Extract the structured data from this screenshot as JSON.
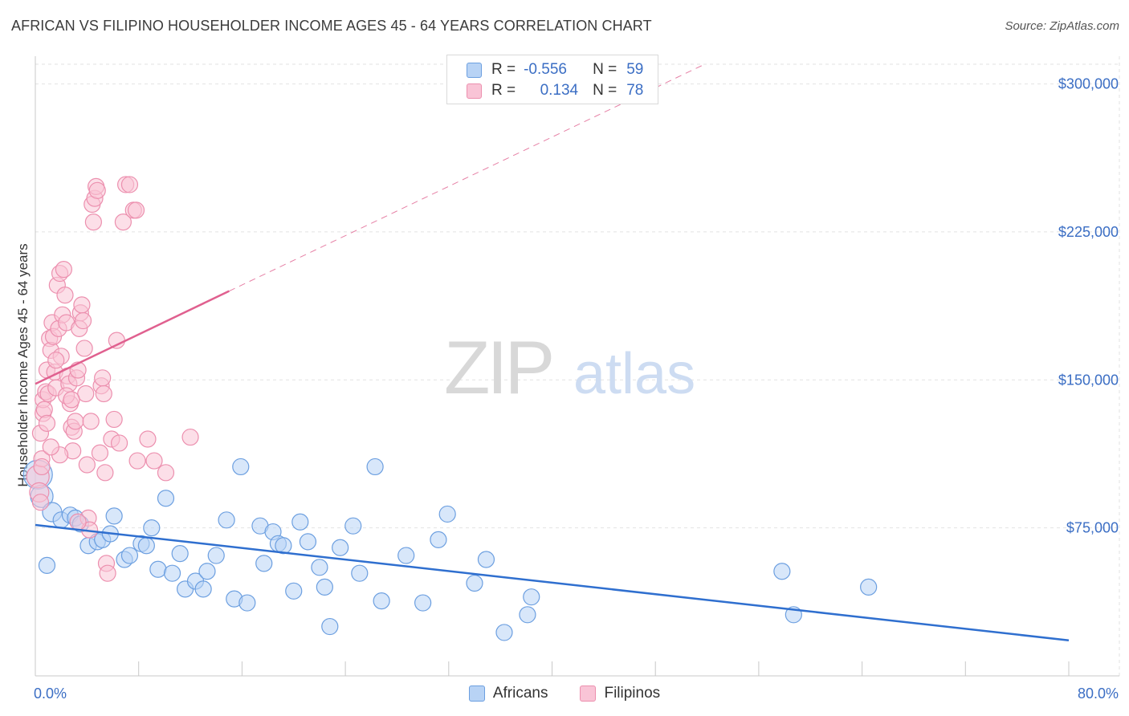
{
  "title": "AFRICAN VS FILIPINO HOUSEHOLDER INCOME AGES 45 - 64 YEARS CORRELATION CHART",
  "source": "Source: ZipAtlas.com",
  "watermark": {
    "zip": "ZIP",
    "atlas": "atlas"
  },
  "colors": {
    "africans_fill": "#b8d3f5",
    "africans_stroke": "#6c9fe0",
    "africans_line": "#2f6fcf",
    "filipinos_fill": "#f9c4d6",
    "filipinos_stroke": "#ec8fae",
    "filipinos_line": "#e0608f",
    "accent_text": "#3b6ec4",
    "grid": "#e2e2e2"
  },
  "legend_top": [
    {
      "r_label": "R =",
      "r_value": "-0.556",
      "n_label": "N =",
      "n_value": "59"
    },
    {
      "r_label": "R =",
      "r_value": "0.134",
      "n_label": "N =",
      "n_value": "78"
    }
  ],
  "chart_data": {
    "type": "scatter",
    "title": "AFRICAN VS FILIPINO HOUSEHOLDER INCOME AGES 45 - 64 YEARS CORRELATION CHART",
    "xlabel": "",
    "ylabel": "Householder Income Ages 45 - 64 years",
    "xlim": [
      0,
      80
    ],
    "ylim": [
      0,
      310000
    ],
    "x_tick_labels": [
      "0.0%",
      "80.0%"
    ],
    "y_ticks": [
      75000,
      150000,
      225000,
      300000
    ],
    "y_tick_labels": [
      "$75,000",
      "$150,000",
      "$225,000",
      "$300,000"
    ],
    "grid": true,
    "legend_position": "bottom",
    "series": [
      {
        "name": "Africans",
        "trend": {
          "x0": 0,
          "y0": 76500,
          "x1": 80,
          "y1": 18000,
          "r": -0.556,
          "n": 59
        },
        "points": [
          [
            0.2,
            102000,
            18
          ],
          [
            0.5,
            91000,
            14
          ],
          [
            1.3,
            83000,
            12
          ],
          [
            2.0,
            79000,
            10
          ],
          [
            2.7,
            81500,
            10
          ],
          [
            3.1,
            80000,
            10
          ],
          [
            3.5,
            77000,
            10
          ],
          [
            4.1,
            66000,
            10
          ],
          [
            4.8,
            68000,
            10
          ],
          [
            5.2,
            69000,
            10
          ],
          [
            5.8,
            72000,
            10
          ],
          [
            6.1,
            81000,
            10
          ],
          [
            6.9,
            59000,
            10
          ],
          [
            7.3,
            61000,
            10
          ],
          [
            8.2,
            67000,
            10
          ],
          [
            8.6,
            66000,
            10
          ],
          [
            9.0,
            75000,
            10
          ],
          [
            9.5,
            54000,
            10
          ],
          [
            10.1,
            90000,
            10
          ],
          [
            10.6,
            52000,
            10
          ],
          [
            11.2,
            62000,
            10
          ],
          [
            11.6,
            44000,
            10
          ],
          [
            12.4,
            48000,
            10
          ],
          [
            13.0,
            44000,
            10
          ],
          [
            13.3,
            53000,
            10
          ],
          [
            14.0,
            61000,
            10
          ],
          [
            14.8,
            79000,
            10
          ],
          [
            15.4,
            39000,
            10
          ],
          [
            15.9,
            106000,
            10
          ],
          [
            16.4,
            37000,
            10
          ],
          [
            17.4,
            76000,
            10
          ],
          [
            17.7,
            57000,
            10
          ],
          [
            18.4,
            73000,
            10
          ],
          [
            18.8,
            67000,
            10
          ],
          [
            19.2,
            66000,
            10
          ],
          [
            20.0,
            43000,
            10
          ],
          [
            20.5,
            78000,
            10
          ],
          [
            21.1,
            68000,
            10
          ],
          [
            22.0,
            55000,
            10
          ],
          [
            22.4,
            45000,
            10
          ],
          [
            22.8,
            25000,
            10
          ],
          [
            23.6,
            65000,
            10
          ],
          [
            24.6,
            76000,
            10
          ],
          [
            25.1,
            52000,
            10
          ],
          [
            26.3,
            106000,
            10
          ],
          [
            26.8,
            38000,
            10
          ],
          [
            28.7,
            61000,
            10
          ],
          [
            30.0,
            37000,
            10
          ],
          [
            31.2,
            69000,
            10
          ],
          [
            31.9,
            82000,
            10
          ],
          [
            34.0,
            47000,
            10
          ],
          [
            34.9,
            59000,
            10
          ],
          [
            36.3,
            22000,
            10
          ],
          [
            38.1,
            31000,
            10
          ],
          [
            38.4,
            40000,
            10
          ],
          [
            57.8,
            53000,
            10
          ],
          [
            58.7,
            31000,
            10
          ],
          [
            64.5,
            45000,
            10
          ],
          [
            0.9,
            56000,
            10
          ]
        ]
      },
      {
        "name": "Filipinos",
        "trend": {
          "x0": 0,
          "y0": 148000,
          "x1": 15,
          "y1": 195000,
          "x2": 80,
          "y2": 398000,
          "r": 0.134,
          "n": 78
        },
        "points": [
          [
            0.2,
            101000,
            14
          ],
          [
            0.3,
            93000,
            12
          ],
          [
            0.4,
            88000,
            10
          ],
          [
            0.5,
            110000,
            10
          ],
          [
            0.4,
            123000,
            10
          ],
          [
            0.6,
            133000,
            10
          ],
          [
            0.5,
            106000,
            10
          ],
          [
            0.6,
            140000,
            10
          ],
          [
            0.7,
            135000,
            10
          ],
          [
            0.8,
            144000,
            10
          ],
          [
            0.9,
            155000,
            10
          ],
          [
            1.0,
            143000,
            10
          ],
          [
            1.1,
            171000,
            10
          ],
          [
            1.2,
            165000,
            10
          ],
          [
            1.3,
            179000,
            10
          ],
          [
            1.4,
            172000,
            10
          ],
          [
            1.5,
            154000,
            10
          ],
          [
            1.6,
            146000,
            10
          ],
          [
            1.7,
            198000,
            10
          ],
          [
            1.8,
            176000,
            10
          ],
          [
            1.9,
            204000,
            10
          ],
          [
            2.0,
            162000,
            10
          ],
          [
            2.1,
            183000,
            10
          ],
          [
            2.2,
            206000,
            10
          ],
          [
            2.3,
            193000,
            10
          ],
          [
            2.4,
            179000,
            10
          ],
          [
            2.5,
            152000,
            10
          ],
          [
            2.6,
            148000,
            10
          ],
          [
            2.7,
            138000,
            10
          ],
          [
            2.8,
            126000,
            10
          ],
          [
            2.9,
            114000,
            10
          ],
          [
            3.0,
            124000,
            10
          ],
          [
            3.1,
            129000,
            10
          ],
          [
            3.2,
            151000,
            10
          ],
          [
            3.3,
            155000,
            10
          ],
          [
            3.4,
            176000,
            10
          ],
          [
            3.5,
            184000,
            10
          ],
          [
            3.6,
            188000,
            10
          ],
          [
            3.7,
            180000,
            10
          ],
          [
            3.8,
            166000,
            10
          ],
          [
            3.9,
            143000,
            10
          ],
          [
            4.0,
            107000,
            10
          ],
          [
            4.1,
            80000,
            10
          ],
          [
            4.2,
            74000,
            10
          ],
          [
            4.3,
            129000,
            10
          ],
          [
            4.4,
            239000,
            10
          ],
          [
            4.5,
            230000,
            10
          ],
          [
            4.6,
            242000,
            10
          ],
          [
            4.7,
            248000,
            10
          ],
          [
            4.8,
            246000,
            10
          ],
          [
            5.0,
            113000,
            10
          ],
          [
            5.1,
            147000,
            10
          ],
          [
            5.2,
            151000,
            10
          ],
          [
            5.3,
            143000,
            10
          ],
          [
            5.4,
            103000,
            10
          ],
          [
            5.5,
            57000,
            10
          ],
          [
            5.6,
            52000,
            10
          ],
          [
            5.9,
            120000,
            10
          ],
          [
            6.1,
            130000,
            10
          ],
          [
            6.3,
            170000,
            10
          ],
          [
            6.8,
            230000,
            10
          ],
          [
            7.0,
            249000,
            10
          ],
          [
            7.3,
            249000,
            10
          ],
          [
            7.6,
            236000,
            10
          ],
          [
            7.8,
            236000,
            10
          ],
          [
            7.9,
            109000,
            10
          ],
          [
            8.7,
            120000,
            10
          ],
          [
            9.2,
            109000,
            10
          ],
          [
            10.1,
            103000,
            10
          ],
          [
            2.4,
            142000,
            10
          ],
          [
            1.9,
            112000,
            10
          ],
          [
            0.9,
            128000,
            10
          ],
          [
            1.2,
            116000,
            10
          ],
          [
            1.6,
            160000,
            10
          ],
          [
            2.8,
            140000,
            10
          ],
          [
            3.3,
            78000,
            10
          ],
          [
            6.5,
            118000,
            10
          ],
          [
            12.0,
            121000,
            10
          ]
        ]
      }
    ]
  },
  "legend_bottom": [
    {
      "name": "Africans"
    },
    {
      "name": "Filipinos"
    }
  ]
}
